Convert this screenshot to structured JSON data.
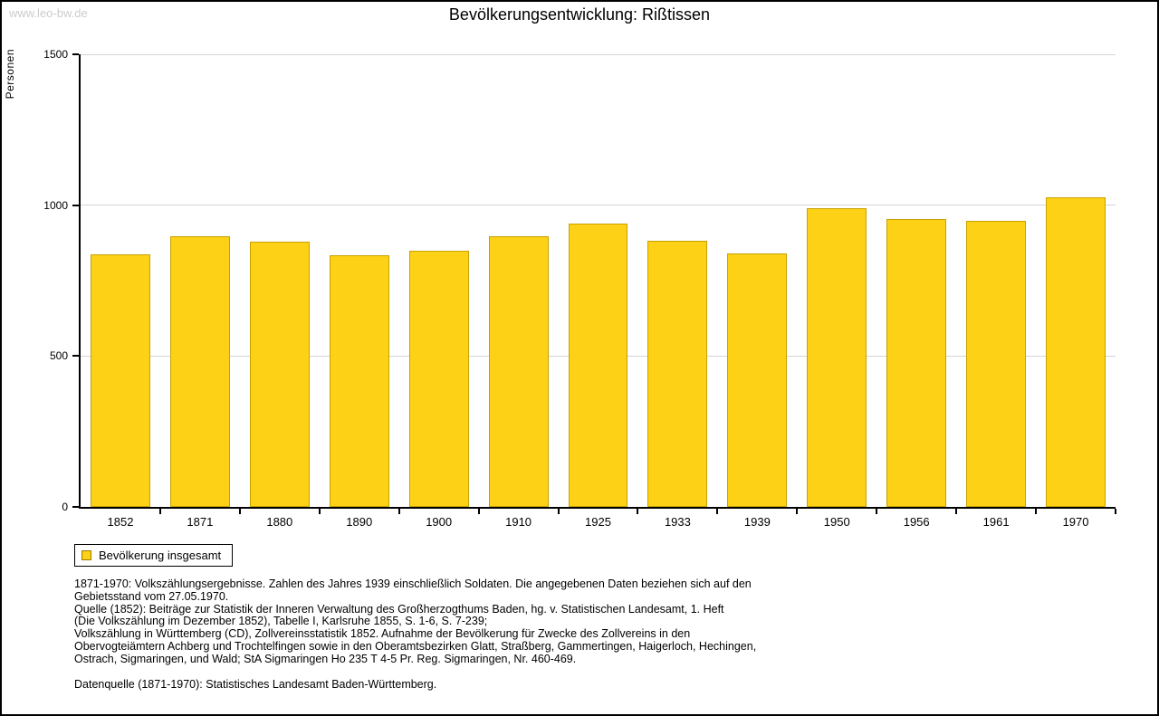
{
  "watermark": "www.leo-bw.de",
  "title": "Bevölkerungsentwicklung: Rißtissen",
  "chart_data": {
    "type": "bar",
    "title": "Bevölkerungsentwicklung: Rißtissen",
    "xlabel": "",
    "ylabel": "Personen",
    "ylim": [
      0,
      1500
    ],
    "yticks": [
      0,
      500,
      1000,
      1500
    ],
    "grid": true,
    "legend_position": "bottom-left",
    "categories": [
      "1852",
      "1871",
      "1880",
      "1890",
      "1900",
      "1910",
      "1925",
      "1933",
      "1939",
      "1950",
      "1956",
      "1961",
      "1970"
    ],
    "series": [
      {
        "name": "Bevölkerung insgesamt",
        "color": "#FCD116",
        "border_color": "#C9A100",
        "values": [
          837,
          898,
          879,
          834,
          849,
          897,
          939,
          882,
          840,
          990,
          954,
          948,
          1026
        ]
      }
    ]
  },
  "legend": {
    "label": "Bevölkerung insgesamt",
    "swatch_color": "#FCD116"
  },
  "footnotes": {
    "paragraph1_lines": [
      "1871-1970: Volkszählungsergebnisse. Zahlen des Jahres 1939 einschließlich Soldaten. Die angegebenen Daten beziehen sich auf den",
      "Gebietsstand vom 27.05.1970.",
      "Quelle (1852): Beiträge zur Statistik der Inneren Verwaltung des Großherzogthums Baden, hg. v. Statistischen Landesamt, 1. Heft",
      "(Die Volkszählung im Dezember 1852), Tabelle I, Karlsruhe 1855, S. 1-6, S. 7-239;",
      "Volkszählung in Württemberg (CD), Zollvereinsstatistik 1852. Aufnahme der Bevölkerung für Zwecke des Zollvereins in den",
      "Obervogteiämtern Achberg und Trochtelfingen sowie in den Oberamtsbezirken Glatt, Straßberg, Gammertingen, Haigerloch, Hechingen,",
      "Ostrach, Sigmaringen, und Wald; StA Sigmaringen Ho 235 T 4-5 Pr. Reg. Sigmaringen, Nr. 460-469."
    ],
    "paragraph2": "Datenquelle (1871-1970): Statistisches Landesamt Baden-Württemberg."
  }
}
